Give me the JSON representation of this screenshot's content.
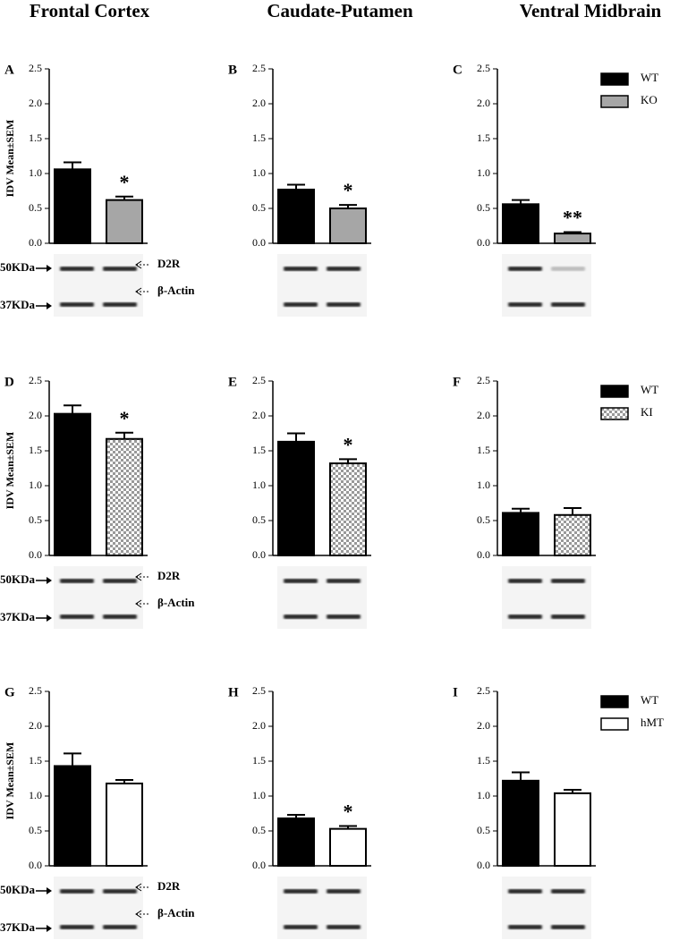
{
  "columns": [
    "Frontal Cortex",
    "Caudate-Putamen",
    "Ventral Midbrain"
  ],
  "blot_labels": {
    "marker_50": "50KDa",
    "marker_37": "37KDa",
    "target": "D2R",
    "control": "β-Actin"
  },
  "chart_data": [
    {
      "type": "bar",
      "panel": "A",
      "y_label": "IDV Mean±SEM",
      "values": [
        1.06,
        0.62
      ],
      "errors": [
        0.1,
        0.05
      ],
      "fills": [
        "#000000",
        "#a6a6a6"
      ],
      "annotation": "*",
      "ylim": [
        0,
        2.5
      ],
      "yticks": [
        {
          "value": 0,
          "label": "0.0"
        },
        0.5,
        {
          "value": 1,
          "label": "1.0"
        },
        1.5,
        {
          "value": 2,
          "label": "2.0"
        },
        2.5
      ]
    },
    {
      "type": "bar",
      "panel": "B",
      "values": [
        0.77,
        0.5
      ],
      "errors": [
        0.07,
        0.05
      ],
      "fills": [
        "#000000",
        "#a6a6a6"
      ],
      "annotation": "*",
      "ylim": [
        0,
        2.5
      ],
      "yticks": [
        {
          "value": 0,
          "label": "0.0"
        },
        0.5,
        {
          "value": 1,
          "label": "1.0"
        },
        1.5,
        {
          "value": 2,
          "label": "2.0"
        },
        2.5
      ]
    },
    {
      "type": "bar",
      "panel": "C",
      "values": [
        0.56,
        0.14
      ],
      "errors": [
        0.06,
        0.02
      ],
      "fills": [
        "#000000",
        "#a6a6a6"
      ],
      "annotation": "**",
      "legend": [
        "WT",
        "KO"
      ],
      "ylim": [
        0,
        2.5
      ],
      "yticks": [
        {
          "value": 0,
          "label": "0.0"
        },
        0.5,
        {
          "value": 1,
          "label": "1.0"
        },
        1.5,
        {
          "value": 2,
          "label": "2.0"
        },
        2.5
      ]
    },
    {
      "type": "bar",
      "panel": "D",
      "y_label": "IDV Mean±SEM",
      "values": [
        2.03,
        1.67
      ],
      "errors": [
        0.12,
        0.09
      ],
      "fills": [
        "#000000",
        "checker"
      ],
      "annotation": "*",
      "ylim": [
        0,
        2.5
      ],
      "yticks": [
        {
          "value": 0,
          "label": "0.0"
        },
        0.5,
        {
          "value": 1,
          "label": "1.0"
        },
        1.5,
        {
          "value": 2,
          "label": "2.0"
        },
        2.5
      ]
    },
    {
      "type": "bar",
      "panel": "E",
      "values": [
        1.63,
        1.32
      ],
      "errors": [
        0.12,
        0.06
      ],
      "fills": [
        "#000000",
        "checker"
      ],
      "annotation": "*",
      "ylim": [
        0,
        2.5
      ],
      "yticks": [
        {
          "value": 0,
          "label": "0.0"
        },
        0.5,
        {
          "value": 1,
          "label": "1.0"
        },
        1.5,
        {
          "value": 2,
          "label": "2.0"
        },
        2.5
      ]
    },
    {
      "type": "bar",
      "panel": "F",
      "values": [
        0.61,
        0.58
      ],
      "errors": [
        0.06,
        0.1
      ],
      "fills": [
        "#000000",
        "checker"
      ],
      "legend": [
        "WT",
        "KI"
      ],
      "ylim": [
        0,
        2.5
      ],
      "yticks": [
        {
          "value": 0,
          "label": "0.0"
        },
        0.5,
        {
          "value": 1,
          "label": "1.0"
        },
        1.5,
        {
          "value": 2,
          "label": "2.0"
        },
        2.5
      ]
    },
    {
      "type": "bar",
      "panel": "G",
      "y_label": "IDV Mean±SEM",
      "values": [
        1.43,
        1.18
      ],
      "errors": [
        0.18,
        0.05
      ],
      "fills": [
        "#000000",
        "#ffffff"
      ],
      "ylim": [
        0,
        2.5
      ],
      "yticks": [
        {
          "value": 0,
          "label": "0.0"
        },
        0.5,
        {
          "value": 1,
          "label": "1.0"
        },
        1.5,
        {
          "value": 2,
          "label": "2.0"
        },
        2.5
      ]
    },
    {
      "type": "bar",
      "panel": "H",
      "values": [
        0.68,
        0.53
      ],
      "errors": [
        0.05,
        0.04
      ],
      "fills": [
        "#000000",
        "#ffffff"
      ],
      "annotation": "*",
      "ylim": [
        0,
        2.5
      ],
      "yticks": [
        {
          "value": 0,
          "label": "0.0"
        },
        0.5,
        {
          "value": 1,
          "label": "1.0"
        },
        1.5,
        {
          "value": 2,
          "label": "2.0"
        },
        2.5
      ]
    },
    {
      "type": "bar",
      "panel": "I",
      "values": [
        1.22,
        1.04
      ],
      "errors": [
        0.12,
        0.05
      ],
      "fills": [
        "#000000",
        "#ffffff"
      ],
      "legend": [
        "WT",
        "hMT"
      ],
      "ylim": [
        0,
        2.5
      ],
      "yticks": [
        {
          "value": 0,
          "label": "0.0"
        },
        0.5,
        {
          "value": 1,
          "label": "1.0"
        },
        1.5,
        {
          "value": 2,
          "label": "2.0"
        },
        2.5
      ]
    }
  ]
}
